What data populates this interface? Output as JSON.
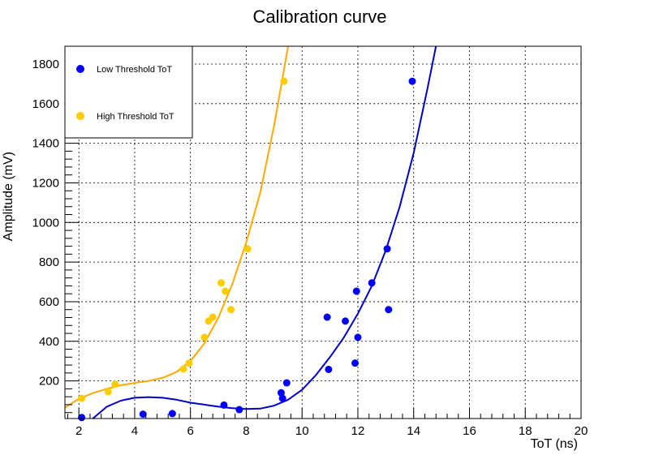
{
  "chart_data": {
    "type": "scatter",
    "title": "Calibration curve",
    "xlabel": "ToT (ns)",
    "ylabel": "Amplitude (mV)",
    "xlim": [
      1.5,
      20
    ],
    "ylim": [
      10,
      1890
    ],
    "x_ticks": [
      2,
      4,
      6,
      8,
      10,
      12,
      14,
      16,
      18,
      20
    ],
    "y_ticks": [
      200,
      400,
      600,
      800,
      1000,
      1200,
      1400,
      1600,
      1800
    ],
    "grid": true,
    "legend_position": "top-left",
    "series": [
      {
        "name": "Low Threshold ToT",
        "color": "#0000ff",
        "fit_color": "#0000cc",
        "points": [
          {
            "x": 2.1,
            "y": 15
          },
          {
            "x": 4.3,
            "y": 32
          },
          {
            "x": 5.35,
            "y": 35
          },
          {
            "x": 7.2,
            "y": 78
          },
          {
            "x": 7.75,
            "y": 55
          },
          {
            "x": 9.25,
            "y": 140
          },
          {
            "x": 9.3,
            "y": 112
          },
          {
            "x": 9.45,
            "y": 190
          },
          {
            "x": 10.9,
            "y": 522
          },
          {
            "x": 10.95,
            "y": 258
          },
          {
            "x": 11.55,
            "y": 502
          },
          {
            "x": 11.9,
            "y": 290
          },
          {
            "x": 11.95,
            "y": 653
          },
          {
            "x": 12.0,
            "y": 420
          },
          {
            "x": 12.5,
            "y": 695
          },
          {
            "x": 13.05,
            "y": 867
          },
          {
            "x": 13.1,
            "y": 560
          },
          {
            "x": 13.95,
            "y": 1713
          }
        ],
        "fit": {
          "x_range": [
            2.5,
            14.8
          ],
          "anchors": [
            [
              2.5,
              10
            ],
            [
              3,
              70
            ],
            [
              3.5,
              100
            ],
            [
              4,
              115
            ],
            [
              4.5,
              118
            ],
            [
              5,
              115
            ],
            [
              5.5,
              105
            ],
            [
              6,
              90
            ],
            [
              6.5,
              80
            ],
            [
              7,
              70
            ],
            [
              7.5,
              62
            ],
            [
              8,
              58
            ],
            [
              8.5,
              60
            ],
            [
              9,
              75
            ],
            [
              9.5,
              105
            ],
            [
              10,
              155
            ],
            [
              10.5,
              230
            ],
            [
              11,
              320
            ],
            [
              11.5,
              420
            ],
            [
              12,
              540
            ],
            [
              12.5,
              680
            ],
            [
              13,
              860
            ],
            [
              13.5,
              1080
            ],
            [
              14,
              1350
            ],
            [
              14.5,
              1680
            ],
            [
              14.8,
              1890
            ]
          ]
        }
      },
      {
        "name": "High Threshold ToT",
        "color": "#ffcc00",
        "fit_color": "#ffaa00",
        "points": [
          {
            "x": 2.1,
            "y": 112
          },
          {
            "x": 3.05,
            "y": 145
          },
          {
            "x": 3.3,
            "y": 183
          },
          {
            "x": 5.75,
            "y": 260
          },
          {
            "x": 5.95,
            "y": 290
          },
          {
            "x": 6.5,
            "y": 420
          },
          {
            "x": 6.65,
            "y": 502
          },
          {
            "x": 6.8,
            "y": 522
          },
          {
            "x": 7.1,
            "y": 695
          },
          {
            "x": 7.25,
            "y": 653
          },
          {
            "x": 7.45,
            "y": 560
          },
          {
            "x": 8.05,
            "y": 867
          },
          {
            "x": 9.35,
            "y": 1713
          }
        ],
        "fit": {
          "x_range": [
            1.5,
            9.5
          ],
          "anchors": [
            [
              1.5,
              65
            ],
            [
              2,
              110
            ],
            [
              2.5,
              138
            ],
            [
              3,
              160
            ],
            [
              3.5,
              178
            ],
            [
              4,
              190
            ],
            [
              4.5,
              200
            ],
            [
              5,
              215
            ],
            [
              5.5,
              245
            ],
            [
              6,
              300
            ],
            [
              6.5,
              390
            ],
            [
              7,
              520
            ],
            [
              7.5,
              690
            ],
            [
              8,
              900
            ],
            [
              8.5,
              1150
            ],
            [
              9,
              1490
            ],
            [
              9.5,
              1890
            ]
          ]
        }
      }
    ]
  }
}
